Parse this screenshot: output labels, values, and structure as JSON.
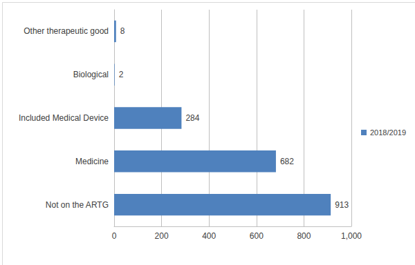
{
  "chart_data": {
    "type": "bar",
    "orientation": "horizontal",
    "categories": [
      "Not on the ARTG",
      "Medicine",
      "Included Medical Device",
      "Biological",
      "Other therapeutic good"
    ],
    "series": [
      {
        "name": "2018/2019",
        "color": "#4f81bd",
        "values": [
          913,
          682,
          284,
          2,
          8
        ]
      }
    ],
    "xlim": [
      0,
      1000
    ],
    "xticks": [
      0,
      200,
      400,
      600,
      800,
      1000
    ],
    "grid": true,
    "data_labels": true,
    "legend": "right"
  }
}
